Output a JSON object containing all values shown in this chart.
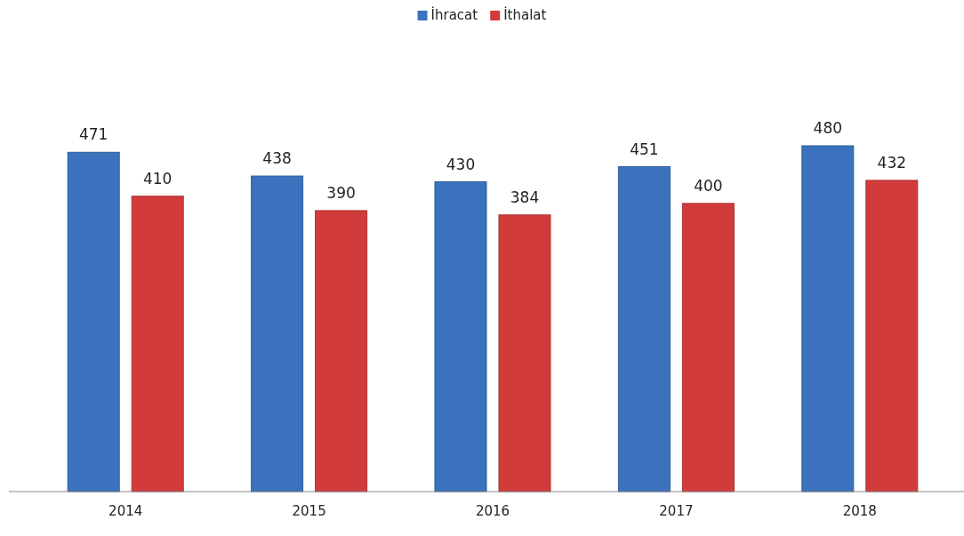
{
  "chart_data": {
    "type": "bar",
    "categories": [
      "2014",
      "2015",
      "2016",
      "2017",
      "2018"
    ],
    "series": [
      {
        "name": "İhracat",
        "color": "#3a72bd",
        "values": [
          471,
          438,
          430,
          451,
          480
        ]
      },
      {
        "name": "İthalat",
        "color": "#d23b3b",
        "values": [
          410,
          390,
          384,
          400,
          432
        ]
      }
    ],
    "data_labels": true,
    "legend": "top",
    "grid": false
  }
}
